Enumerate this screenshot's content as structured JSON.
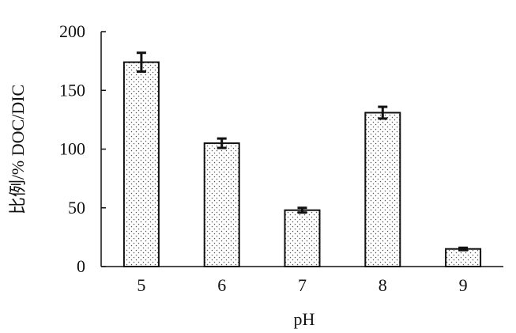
{
  "chart_data": {
    "type": "bar",
    "categories": [
      "5",
      "6",
      "7",
      "8",
      "9"
    ],
    "values": [
      174,
      105,
      48,
      131,
      15
    ],
    "errors": [
      8,
      4,
      2,
      5,
      1
    ],
    "xlabel": "pH",
    "ylabel": "比例/% DOC/DIC",
    "ylim": [
      0,
      200
    ],
    "yticks": [
      "0",
      "50",
      "100",
      "150",
      "200"
    ],
    "grid": false,
    "legend": "none",
    "bar_fill": "dotted",
    "colors": {
      "bar_stroke": "#111111",
      "dot": "#555555",
      "axis": "#111111"
    }
  }
}
